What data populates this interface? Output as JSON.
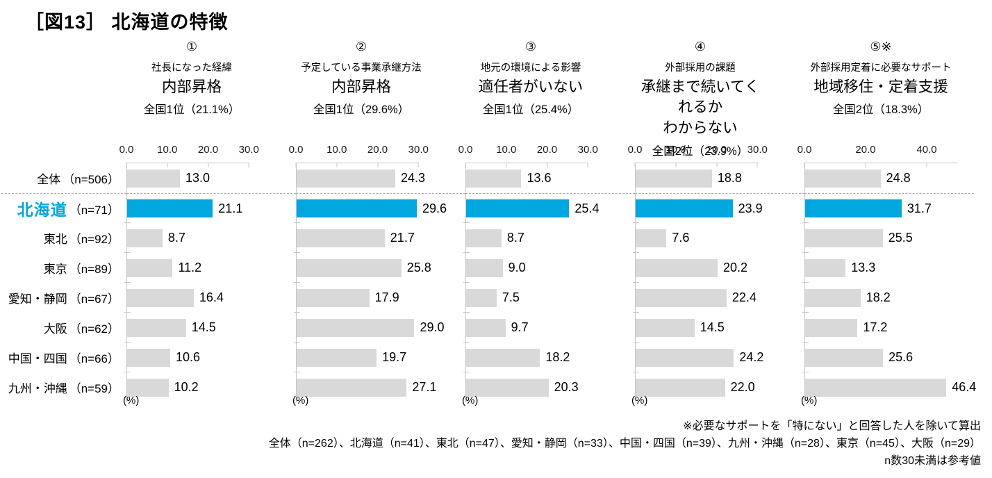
{
  "title": "［図13］ 北海道の特徴",
  "colors": {
    "highlight_blue": "#00A6DE",
    "bar_gray": "#D9D9D9",
    "axis_gray": "#C6C6C6",
    "separator_gray": "#A9A9A9"
  },
  "categories": [
    {
      "label": "全体",
      "n": "（n=506）",
      "highlight": false
    },
    {
      "label": "北海道",
      "n": "（n=71）",
      "highlight": true
    },
    {
      "label": "東北",
      "n": "（n=92）",
      "highlight": false
    },
    {
      "label": "東京",
      "n": "（n=89）",
      "highlight": false
    },
    {
      "label": "愛知・静岡",
      "n": "（n=67）",
      "highlight": false
    },
    {
      "label": "大阪",
      "n": "（n=62）",
      "highlight": false
    },
    {
      "label": "中国・四国",
      "n": "（n=66）",
      "highlight": false
    },
    {
      "label": "九州・沖縄",
      "n": "（n=59）",
      "highlight": false
    }
  ],
  "chart_data": [
    {
      "type": "bar",
      "orientation": "horizontal",
      "number": "①",
      "subtitle": "社長になった経緯",
      "headline": "内部昇格",
      "rank": "全国1位（21.1%）",
      "axis_ticks": [
        0,
        10,
        20,
        30
      ],
      "axis_max": 32,
      "unit_label": "(%)",
      "values": [
        13.0,
        21.1,
        8.7,
        11.2,
        16.4,
        14.5,
        10.6,
        10.2
      ]
    },
    {
      "type": "bar",
      "orientation": "horizontal",
      "number": "②",
      "subtitle": "予定している事業承継方法",
      "headline": "内部昇格",
      "rank": "全国1位（29.6%）",
      "axis_ticks": [
        0,
        10,
        20,
        30
      ],
      "axis_max": 32,
      "unit_label": "(%)",
      "values": [
        24.3,
        29.6,
        21.7,
        25.8,
        17.9,
        29.0,
        19.7,
        27.1
      ]
    },
    {
      "type": "bar",
      "orientation": "horizontal",
      "number": "③",
      "subtitle": "地元の環境による影響",
      "headline": "適任者がいない",
      "rank": "全国1位（25.4%）",
      "axis_ticks": [
        0,
        10,
        20,
        30
      ],
      "axis_max": 32,
      "unit_label": "(%)",
      "values": [
        13.6,
        25.4,
        8.7,
        9.0,
        7.5,
        9.7,
        18.2,
        20.3
      ]
    },
    {
      "type": "bar",
      "orientation": "horizontal",
      "number": "④",
      "subtitle": "外部採用の課題",
      "headline": "承継まで続いてくれるか\nわからない",
      "rank": "全国2位（23.9%）",
      "axis_ticks": [
        0,
        10,
        20,
        30
      ],
      "axis_max": 32,
      "unit_label": "(%)",
      "values": [
        18.8,
        23.9,
        7.6,
        20.2,
        22.4,
        14.5,
        24.2,
        22.0
      ]
    },
    {
      "type": "bar",
      "orientation": "horizontal",
      "number": "⑤※",
      "subtitle": "外部採用定着に必要なサポート",
      "headline": "地域移住・定着支援",
      "rank": "全国2位（18.3%）",
      "axis_ticks": [
        0,
        20,
        40
      ],
      "axis_max": 50,
      "unit_label": "(%)",
      "values": [
        24.8,
        31.7,
        25.5,
        13.3,
        18.2,
        17.2,
        25.6,
        46.4
      ]
    }
  ],
  "footnotes": {
    "line1": "※必要なサポートを「特にない」と回答した人を除いて算出",
    "line2": "全体（n=262）、北海道（n=41）、東北（n=47）、愛知・静岡（n=33）、中国・四国（n=39）、九州・沖縄（n=28）、東京（n=45）、大阪（n=29）",
    "line3": "n数30未満は参考値"
  }
}
